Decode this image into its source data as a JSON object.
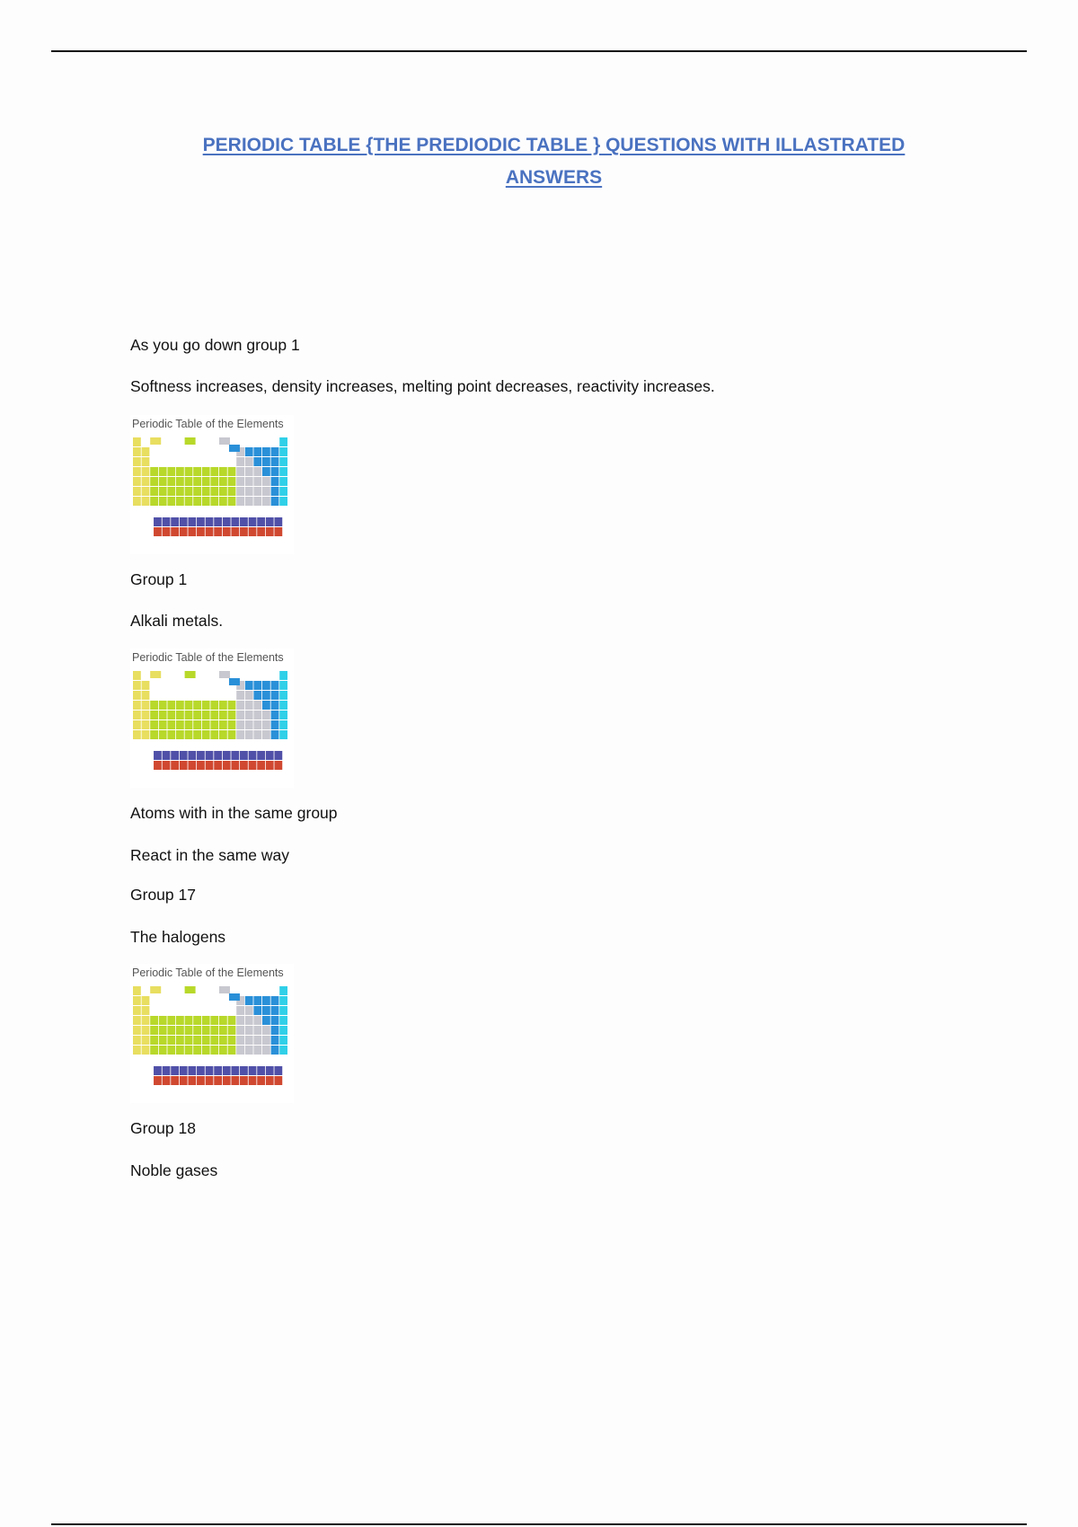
{
  "document": {
    "title_line1": "PERIODIC TABLE {THE PREDIODIC TABLE } QUESTIONS WITH ILLASTRATED",
    "title_line2": "ANSWERS",
    "title_color": "#4a72c0",
    "paragraphs": [
      "As you go down group 1",
      "Softness increases, density increases, melting point decreases, reactivity increases.",
      "Group 1",
      "Alkali metals.",
      "Atoms with in the same group",
      "React in the same way",
      "Group 17",
      "The halogens",
      "Group 18",
      "Noble gases"
    ],
    "figure": {
      "caption": "Periodic Table of the Elements",
      "colors": {
        "alkali": "#e8de60",
        "transition": "#b8d82a",
        "nonmetal": "#c8c8d0",
        "halogen": "#2a90d8",
        "noble": "#30d0e8",
        "lanthanide": "#5050a8",
        "actinide": "#d04830"
      }
    }
  }
}
